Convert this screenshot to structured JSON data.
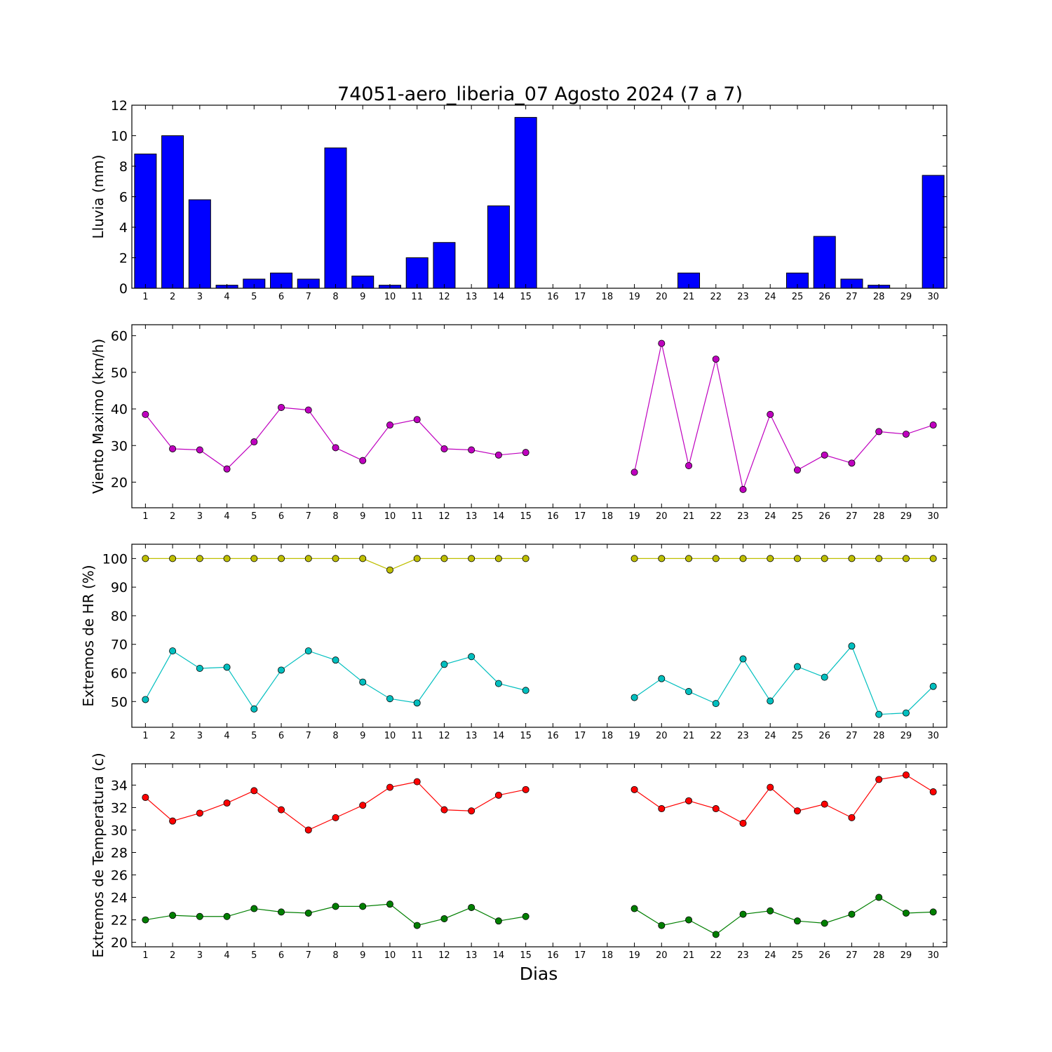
{
  "chart_data": [
    {
      "type": "bar",
      "title": "74051-aero_liberia_07 Agosto 2024  (7 a 7)",
      "xlabel": "",
      "ylabel": "Lluvia (mm)",
      "x": [
        1,
        2,
        3,
        4,
        5,
        6,
        7,
        8,
        9,
        10,
        11,
        12,
        13,
        14,
        15,
        16,
        17,
        18,
        19,
        20,
        21,
        22,
        23,
        24,
        25,
        26,
        27,
        28,
        29,
        30
      ],
      "ylim": [
        0,
        12
      ],
      "yticks": [
        0,
        2,
        4,
        6,
        8,
        10,
        12
      ],
      "series": [
        {
          "color": "#0000ff",
          "values": [
            8.8,
            10.0,
            5.8,
            0.2,
            0.6,
            1.0,
            0.6,
            9.2,
            0.8,
            0.2,
            2.0,
            3.0,
            0.0,
            5.4,
            11.2,
            0,
            0,
            0,
            0,
            0,
            1.0,
            0,
            0,
            0,
            1.0,
            3.4,
            0.6,
            0.2,
            0,
            7.4
          ]
        }
      ]
    },
    {
      "type": "line",
      "title": "",
      "xlabel": "",
      "ylabel": "Viento Maximo (km/h)",
      "x": [
        1,
        2,
        3,
        4,
        5,
        6,
        7,
        8,
        9,
        10,
        11,
        12,
        13,
        14,
        15,
        16,
        17,
        18,
        19,
        20,
        21,
        22,
        23,
        24,
        25,
        26,
        27,
        28,
        29,
        30
      ],
      "ylim": [
        13,
        63
      ],
      "yticks": [
        20,
        30,
        40,
        50,
        60
      ],
      "series": [
        {
          "color": "#bf00bf",
          "values": [
            38.5,
            29.1,
            28.8,
            23.6,
            31.0,
            40.4,
            39.7,
            29.4,
            25.9,
            35.6,
            37.1,
            29.1,
            28.8,
            27.4,
            28.1,
            null,
            null,
            null,
            22.7,
            57.9,
            24.5,
            53.6,
            18.0,
            38.5,
            23.3,
            27.4,
            25.2,
            33.8,
            33.1,
            35.6
          ]
        }
      ]
    },
    {
      "type": "line",
      "title": "",
      "xlabel": "",
      "ylabel": "Extremos de HR (%)",
      "x": [
        1,
        2,
        3,
        4,
        5,
        6,
        7,
        8,
        9,
        10,
        11,
        12,
        13,
        14,
        15,
        16,
        17,
        18,
        19,
        20,
        21,
        22,
        23,
        24,
        25,
        26,
        27,
        28,
        29,
        30
      ],
      "ylim": [
        41,
        105
      ],
      "yticks": [
        50,
        60,
        70,
        80,
        90,
        100
      ],
      "series": [
        {
          "color": "#bfbf00",
          "values": [
            100,
            100,
            100,
            100,
            100,
            100,
            100,
            100,
            100,
            96,
            100,
            100,
            100,
            100,
            100,
            null,
            null,
            null,
            100,
            100,
            100,
            100,
            100,
            100,
            100,
            100,
            100,
            100,
            100,
            100
          ]
        },
        {
          "color": "#00bfbf",
          "values": [
            50.7,
            67.7,
            61.6,
            62.0,
            47.4,
            61.0,
            67.7,
            64.5,
            56.8,
            51.0,
            49.5,
            63.0,
            65.7,
            56.3,
            53.9,
            null,
            null,
            null,
            51.4,
            58.0,
            53.5,
            49.3,
            64.9,
            50.2,
            62.2,
            58.5,
            69.4,
            45.5,
            46.0,
            55.3
          ]
        }
      ]
    },
    {
      "type": "line",
      "title": "",
      "xlabel": "Dias",
      "ylabel": "Extremos de Temperatura (c)",
      "x": [
        1,
        2,
        3,
        4,
        5,
        6,
        7,
        8,
        9,
        10,
        11,
        12,
        13,
        14,
        15,
        16,
        17,
        18,
        19,
        20,
        21,
        22,
        23,
        24,
        25,
        26,
        27,
        28,
        29,
        30
      ],
      "ylim": [
        19.6,
        35.9
      ],
      "yticks": [
        20,
        22,
        24,
        26,
        28,
        30,
        32,
        34
      ],
      "series": [
        {
          "color": "#ff0000",
          "values": [
            32.9,
            30.8,
            31.5,
            32.4,
            33.5,
            31.8,
            30.0,
            31.1,
            32.2,
            33.8,
            34.3,
            31.8,
            31.7,
            33.1,
            33.6,
            null,
            null,
            null,
            33.6,
            31.9,
            32.6,
            31.9,
            30.6,
            33.8,
            31.7,
            32.3,
            31.1,
            34.5,
            34.9,
            33.4
          ]
        },
        {
          "color": "#007f00",
          "values": [
            22.0,
            22.4,
            22.3,
            22.3,
            23.0,
            22.7,
            22.6,
            23.2,
            23.2,
            23.4,
            21.5,
            22.1,
            23.1,
            21.9,
            22.3,
            null,
            null,
            null,
            23.0,
            21.5,
            22.0,
            20.7,
            22.5,
            22.8,
            21.9,
            21.7,
            22.5,
            24.0,
            22.6,
            22.7
          ]
        }
      ]
    }
  ]
}
